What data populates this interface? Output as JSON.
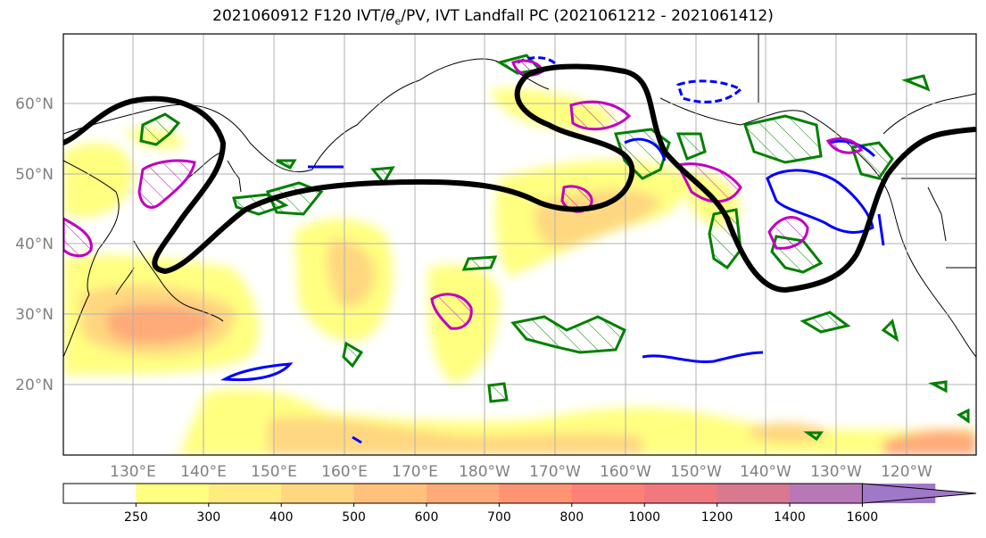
{
  "title_main": "2021060912 F120 IVT/",
  "title_theta": "θ",
  "title_theta_sub": "e",
  "title_rest": "/PV, IVT Landfall PC (2021061212 - 2021061412)",
  "lat_labels": [
    "60°N",
    "50°N",
    "40°N",
    "30°N",
    "20°N"
  ],
  "lon_labels": [
    "130°E",
    "140°E",
    "150°E",
    "160°E",
    "170°E",
    "180°W",
    "170°W",
    "160°W",
    "150°W",
    "140°W",
    "130°W",
    "120°W"
  ],
  "colorbar": {
    "ticks": [
      "250",
      "300",
      "400",
      "500",
      "600",
      "700",
      "800",
      "1000",
      "1200",
      "1400",
      "1600"
    ],
    "colors": [
      "#ffff80",
      "#ffec80",
      "#ffd780",
      "#ffc17c",
      "#ffaa78",
      "#ff9372",
      "#ff8076",
      "#f27880",
      "#da7890",
      "#b878b8",
      "#a078c8"
    ],
    "extend": "max"
  },
  "colors": {
    "frame": "#000000",
    "grid": "#b0b0b0",
    "coast": "#000000",
    "landfall_pc": "#000000",
    "pv_contour": "#008000",
    "theta_e_contour": "#0000ff",
    "ivt_contour": "#c000c0"
  }
}
